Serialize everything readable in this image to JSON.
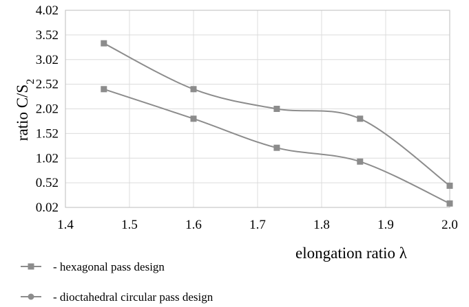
{
  "chart_data": {
    "type": "line",
    "title": "",
    "xlabel": "elongation ratio λ",
    "ylabel_main": "ratio C/S",
    "ylabel_subscript": "2",
    "xlim": [
      1.4,
      2.0
    ],
    "ylim": [
      0.02,
      4.02
    ],
    "x_ticks": [
      1.4,
      1.5,
      1.6,
      1.7,
      1.8,
      1.9,
      2.0
    ],
    "x_tick_labels": [
      "1.4",
      "1.5",
      "1.6",
      "1.7",
      "1.8",
      "1.9",
      "2.0"
    ],
    "y_ticks": [
      0.02,
      0.52,
      1.02,
      1.52,
      2.02,
      2.52,
      3.02,
      3.52,
      4.02
    ],
    "y_tick_labels": [
      "0.02",
      "0.52",
      "1.02",
      "1.52",
      "2.02",
      "2.52",
      "3.02",
      "3.52",
      "4.02"
    ],
    "grid": true,
    "legend_position": "bottom-left",
    "series": [
      {
        "name": "- hexagonal pass design",
        "marker": "square",
        "color": "#8c8c8c",
        "x": [
          1.46,
          1.6,
          1.73,
          1.86,
          2.0
        ],
        "y": [
          3.35,
          2.42,
          2.02,
          1.82,
          0.46
        ]
      },
      {
        "name": "- dioctahedral circular pass design",
        "marker": "circle",
        "color": "#8c8c8c",
        "x": [
          1.46,
          1.6,
          1.73,
          1.86,
          2.0
        ],
        "y": [
          2.42,
          1.82,
          1.23,
          0.95,
          0.1
        ]
      }
    ]
  }
}
